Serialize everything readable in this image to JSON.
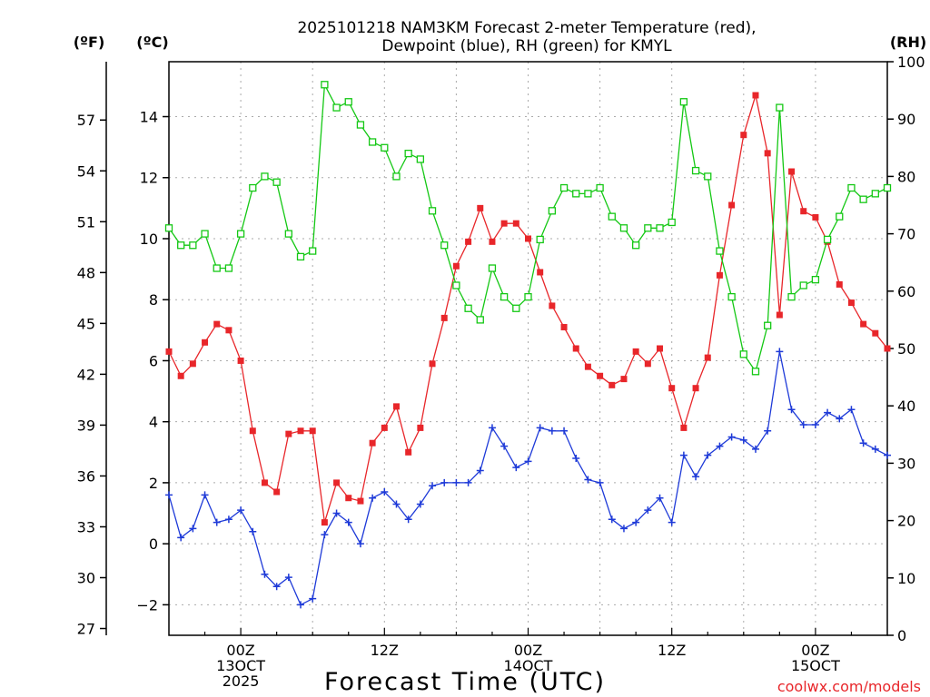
{
  "chart_data": {
    "type": "line",
    "title_line1": "2025101218 NAM3KM Forecast 2-meter Temperature (red),",
    "title_line2": "Dewpoint (blue), RH (green) for KMYL",
    "xlabel": "Forecast Time (UTC)",
    "left_outer_unit": "(ºF)",
    "left_inner_unit": "(ºC)",
    "right_unit": "(RH)",
    "credit": "coolwx.com/models",
    "colors": {
      "temperature": "#e8262a",
      "dewpoint": "#1e3ad8",
      "rh": "#14c814"
    },
    "x_range_hours": [
      -6,
      54
    ],
    "celsius_range": [
      -3,
      15.8
    ],
    "celsius_ticks": [
      -2,
      0,
      2,
      4,
      6,
      8,
      10,
      12,
      14
    ],
    "celsius_tick_labels": [
      "−2",
      "0",
      "2",
      "4",
      "6",
      "8",
      "10",
      "12",
      "14"
    ],
    "fahrenheit_ticks": [
      27,
      30,
      33,
      36,
      39,
      42,
      45,
      48,
      51,
      54,
      57
    ],
    "fahrenheit_tick_labels": [
      "27",
      "30",
      "33",
      "36",
      "39",
      "42",
      "45",
      "48",
      "51",
      "54",
      "57"
    ],
    "rh_range": [
      0,
      100
    ],
    "rh_ticks": [
      0,
      10,
      20,
      30,
      40,
      50,
      60,
      70,
      80,
      90,
      100
    ],
    "rh_tick_labels": [
      "0",
      "10",
      "20",
      "30",
      "40",
      "50",
      "60",
      "70",
      "80",
      "90",
      "100"
    ],
    "x_ticks": [
      {
        "hour": 0,
        "lines": [
          "00Z",
          "13OCT",
          "2025"
        ]
      },
      {
        "hour": 12,
        "lines": [
          "12Z"
        ]
      },
      {
        "hour": 24,
        "lines": [
          "00Z",
          "14OCT"
        ]
      },
      {
        "hour": 36,
        "lines": [
          "12Z"
        ]
      },
      {
        "hour": 48,
        "lines": [
          "00Z",
          "15OCT"
        ]
      }
    ],
    "series": [
      {
        "name": "Temperature (°C)",
        "marker": "filled-square",
        "x": [
          -6,
          -5,
          -4,
          -3,
          -2,
          -1,
          0,
          1,
          2,
          3,
          4,
          5,
          6,
          7,
          8,
          9,
          10,
          11,
          12,
          13,
          14,
          15,
          16,
          17,
          18,
          19,
          20,
          21,
          22,
          23,
          24,
          25,
          26,
          27,
          28,
          29,
          30,
          31,
          32,
          33,
          34,
          35,
          36,
          37,
          38,
          39,
          40,
          41,
          42,
          43,
          44,
          45,
          46,
          47,
          48,
          49,
          50,
          51,
          52,
          53,
          54
        ],
        "values": [
          6.3,
          5.5,
          5.9,
          6.6,
          7.2,
          7.0,
          6.0,
          3.7,
          2.0,
          1.7,
          3.6,
          3.7,
          3.7,
          0.7,
          2.0,
          1.5,
          1.4,
          3.3,
          3.8,
          4.5,
          3.0,
          3.8,
          5.9,
          7.4,
          9.1,
          9.9,
          11.0,
          9.9,
          10.5,
          10.5,
          10.0,
          8.9,
          7.8,
          7.1,
          6.4,
          5.8,
          5.5,
          5.2,
          5.4,
          6.3,
          5.9,
          6.4,
          5.1,
          3.8,
          5.1,
          6.1,
          8.8,
          11.1,
          13.4,
          14.7,
          12.8,
          7.5,
          12.2,
          10.9,
          10.7,
          9.9,
          8.5,
          7.9,
          7.2,
          6.9,
          6.4
        ]
      },
      {
        "name": "Dewpoint (°C)",
        "marker": "plus",
        "x": [
          -6,
          -5,
          -4,
          -3,
          -2,
          -1,
          0,
          1,
          2,
          3,
          4,
          5,
          6,
          7,
          8,
          9,
          10,
          11,
          12,
          13,
          14,
          15,
          16,
          17,
          18,
          19,
          20,
          21,
          22,
          23,
          24,
          25,
          26,
          27,
          28,
          29,
          30,
          31,
          32,
          33,
          34,
          35,
          36,
          37,
          38,
          39,
          40,
          41,
          42,
          43,
          44,
          45,
          46,
          47,
          48,
          49,
          50,
          51,
          52,
          53,
          54
        ],
        "values": [
          1.6,
          0.2,
          0.5,
          1.6,
          0.7,
          0.8,
          1.1,
          0.4,
          -1.0,
          -1.4,
          -1.1,
          -2.0,
          -1.8,
          0.3,
          1.0,
          0.7,
          0.0,
          1.5,
          1.7,
          1.3,
          0.8,
          1.3,
          1.9,
          2.0,
          2.0,
          2.0,
          2.4,
          3.8,
          3.2,
          2.5,
          2.7,
          3.8,
          3.7,
          3.7,
          2.8,
          2.1,
          2.0,
          0.8,
          0.5,
          0.7,
          1.1,
          1.5,
          0.7,
          2.9,
          2.2,
          2.9,
          3.2,
          3.5,
          3.4,
          3.1,
          3.7,
          6.3,
          4.4,
          3.9,
          3.9,
          4.3,
          4.1,
          4.4,
          3.3,
          3.1,
          2.9
        ]
      },
      {
        "name": "RH (%)",
        "marker": "open-square",
        "x": [
          -6,
          -5,
          -4,
          -3,
          -2,
          -1,
          0,
          1,
          2,
          3,
          4,
          5,
          6,
          7,
          8,
          9,
          10,
          11,
          12,
          13,
          14,
          15,
          16,
          17,
          18,
          19,
          20,
          21,
          22,
          23,
          24,
          25,
          26,
          27,
          28,
          29,
          30,
          31,
          32,
          33,
          34,
          35,
          36,
          37,
          38,
          39,
          40,
          41,
          42,
          43,
          44,
          45,
          46,
          47,
          48,
          49,
          50,
          51,
          52,
          53,
          54
        ],
        "values": [
          71,
          68,
          68,
          70,
          64,
          64,
          70,
          78,
          80,
          79,
          70,
          66,
          67,
          96,
          92,
          93,
          89,
          86,
          85,
          80,
          84,
          83,
          74,
          68,
          61,
          57,
          55,
          64,
          59,
          57,
          59,
          69,
          74,
          78,
          77,
          77,
          78,
          73,
          71,
          68,
          71,
          71,
          72,
          93,
          81,
          80,
          67,
          59,
          49,
          46,
          54,
          92,
          59,
          61,
          62,
          69,
          73,
          78,
          76,
          77,
          78
        ]
      }
    ]
  }
}
